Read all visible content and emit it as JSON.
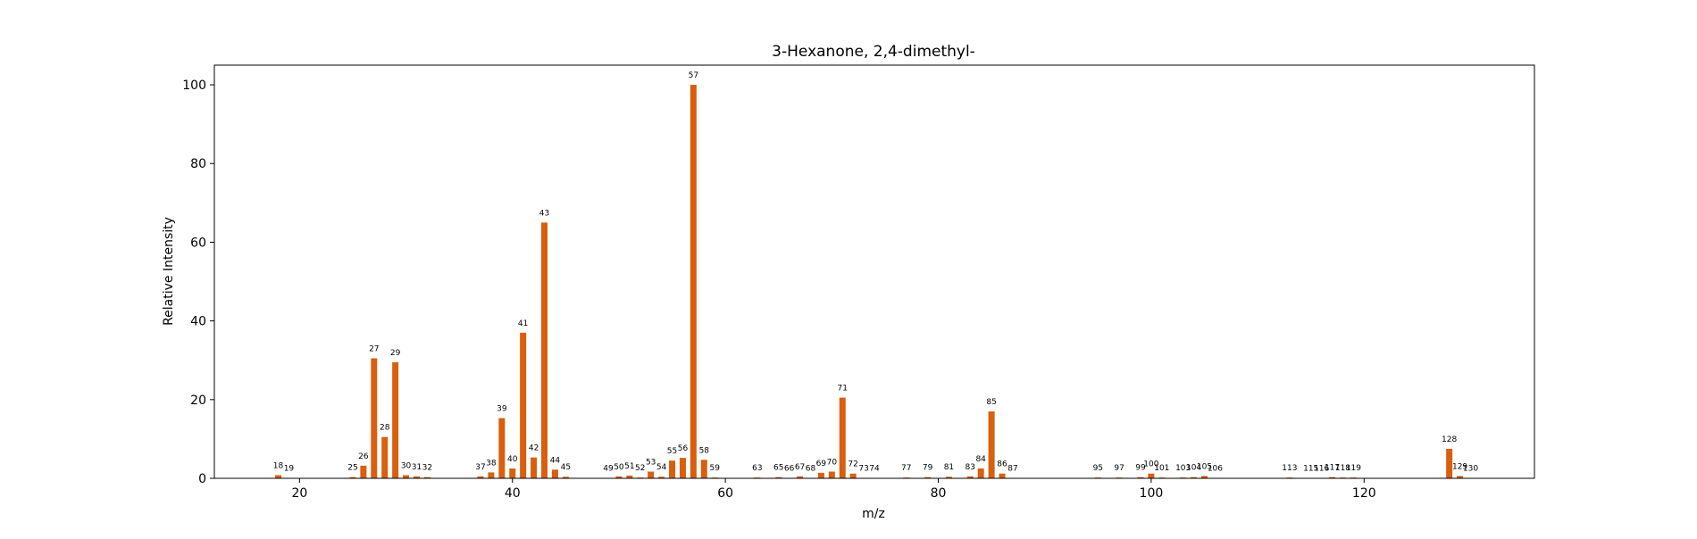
{
  "chart_data": {
    "type": "bar",
    "title": "3-Hexanone, 2,4-dimethyl-",
    "xlabel": "m/z",
    "ylabel": "Relative Intensity",
    "xlim": [
      12,
      136
    ],
    "ylim": [
      0,
      105
    ],
    "xticks": [
      20,
      40,
      60,
      80,
      100,
      120
    ],
    "yticks": [
      0,
      20,
      40,
      60,
      80,
      100
    ],
    "grid": false,
    "bar_color": "#d95f0e",
    "series": [
      {
        "x": [
          18,
          19,
          25,
          26,
          27,
          28,
          29,
          30,
          31,
          32,
          37,
          38,
          39,
          40,
          41,
          42,
          43,
          44,
          45,
          49,
          50,
          51,
          52,
          53,
          54,
          55,
          56,
          57,
          58,
          59,
          63,
          65,
          66,
          67,
          68,
          69,
          70,
          71,
          72,
          73,
          74,
          77,
          79,
          81,
          83,
          84,
          85,
          86,
          87,
          95,
          97,
          99,
          100,
          101,
          103,
          104,
          105,
          106,
          113,
          115,
          116,
          117,
          118,
          119,
          128,
          129,
          130
        ],
        "values": [
          0.8,
          0.1,
          0.3,
          3.2,
          30.5,
          10.5,
          29.5,
          0.8,
          0.5,
          0.3,
          0.5,
          1.5,
          15.3,
          2.5,
          37.0,
          5.3,
          65.0,
          2.2,
          0.4,
          0.1,
          0.5,
          0.7,
          0.2,
          1.7,
          0.4,
          4.5,
          5.2,
          100.0,
          4.7,
          0.2,
          0.2,
          0.3,
          0.1,
          0.5,
          0.1,
          1.4,
          1.7,
          20.5,
          1.2,
          0.1,
          0.1,
          0.2,
          0.3,
          0.4,
          0.5,
          2.5,
          17.0,
          1.2,
          0.1,
          0.2,
          0.2,
          0.3,
          1.2,
          0.2,
          0.2,
          0.3,
          0.6,
          0.1,
          0.2,
          0.1,
          0.1,
          0.3,
          0.2,
          0.2,
          7.5,
          0.6,
          0.1
        ]
      }
    ]
  }
}
